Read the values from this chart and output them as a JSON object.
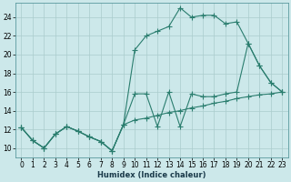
{
  "bg_color": "#cce8ea",
  "grid_color": "#aacccc",
  "line_color": "#2a7d6e",
  "xlabel": "Humidex (Indice chaleur)",
  "xlim": [
    -0.5,
    23.5
  ],
  "ylim": [
    9.0,
    25.5
  ],
  "xticks": [
    0,
    1,
    2,
    3,
    4,
    5,
    6,
    7,
    8,
    9,
    10,
    11,
    12,
    13,
    14,
    15,
    16,
    17,
    18,
    19,
    20,
    21,
    22,
    23
  ],
  "yticks": [
    10,
    12,
    14,
    16,
    18,
    20,
    22,
    24
  ],
  "line1_x": [
    0,
    1,
    2,
    3,
    4,
    5,
    6,
    7,
    8,
    9,
    10,
    11,
    12,
    13,
    14,
    15,
    16,
    17,
    18,
    19,
    20,
    21,
    22,
    23
  ],
  "line1_y": [
    12.2,
    10.8,
    10.0,
    11.5,
    12.3,
    11.8,
    11.2,
    10.7,
    9.7,
    12.5,
    13.0,
    13.2,
    13.5,
    13.8,
    14.0,
    14.3,
    14.5,
    14.8,
    15.0,
    15.3,
    15.5,
    15.7,
    15.8,
    16.0
  ],
  "line2_x": [
    0,
    1,
    2,
    3,
    4,
    5,
    6,
    7,
    8,
    9,
    10,
    11,
    12,
    13,
    14,
    15,
    16,
    17,
    18,
    19,
    20,
    21,
    22,
    23
  ],
  "line2_y": [
    12.2,
    10.8,
    10.0,
    11.5,
    12.3,
    11.8,
    11.2,
    10.7,
    9.7,
    12.5,
    20.5,
    22.0,
    22.5,
    23.0,
    25.0,
    24.0,
    24.2,
    24.2,
    23.3,
    23.5,
    21.2,
    18.8,
    17.0,
    16.0
  ],
  "line3_x": [
    0,
    1,
    2,
    3,
    4,
    5,
    6,
    7,
    8,
    9,
    10,
    11,
    12,
    13,
    14,
    15,
    16,
    17,
    18,
    19,
    20,
    21,
    22,
    23
  ],
  "line3_y": [
    12.2,
    10.8,
    10.0,
    11.5,
    12.3,
    11.8,
    11.2,
    10.7,
    9.7,
    12.5,
    15.8,
    15.8,
    12.3,
    16.0,
    12.3,
    15.8,
    15.5,
    15.5,
    15.8,
    16.0,
    21.2,
    18.8,
    17.0,
    16.0
  ]
}
